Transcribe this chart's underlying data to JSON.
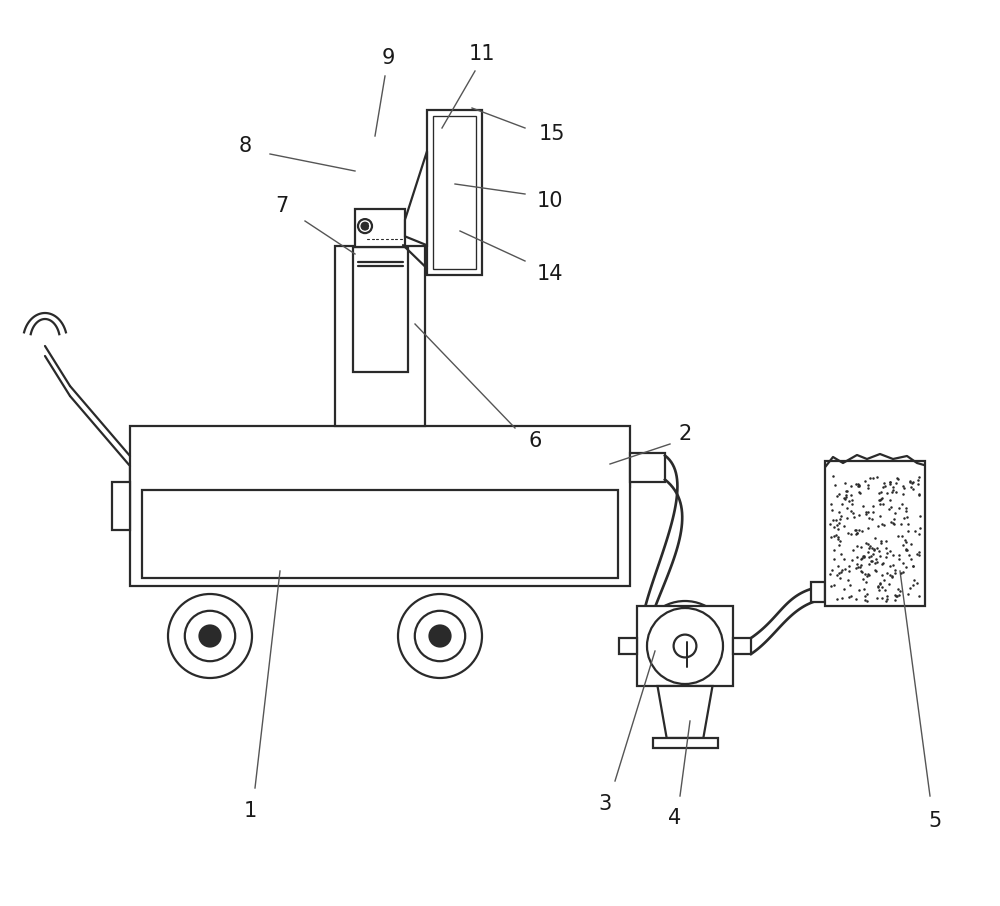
{
  "bg_color": "#ffffff",
  "line_color": "#2a2a2a",
  "line_width": 1.6,
  "label_color": "#1a1a1a",
  "label_fontsize": 15,
  "ann_color": "#555555",
  "ann_lw": 1.0
}
